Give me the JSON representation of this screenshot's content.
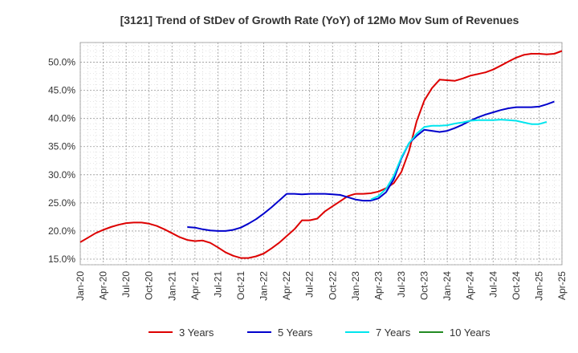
{
  "chart_data": {
    "type": "line",
    "title": "[3121]  Trend of StDev of Growth Rate (YoY) of 12Mo Mov Sum of Revenues",
    "xlabel": "",
    "ylabel": "",
    "ylim": [
      14.0,
      53.5
    ],
    "x_ticks": [
      "Jan-20",
      "Apr-20",
      "Jul-20",
      "Oct-20",
      "Jan-21",
      "Apr-21",
      "Jul-21",
      "Oct-21",
      "Jan-22",
      "Apr-22",
      "Jul-22",
      "Oct-22",
      "Jan-23",
      "Apr-23",
      "Jul-23",
      "Oct-23",
      "Jan-24",
      "Apr-24",
      "Jul-24",
      "Oct-24",
      "Jan-25",
      "Apr-25"
    ],
    "y_ticks": [
      15,
      20,
      25,
      30,
      35,
      40,
      45,
      50
    ],
    "y_tick_labels": [
      "15.0%",
      "20.0%",
      "25.0%",
      "30.0%",
      "35.0%",
      "40.0%",
      "45.0%",
      "50.0%"
    ],
    "grid": true,
    "legend_position": "bottom",
    "series": [
      {
        "name": "3 Years",
        "color": "#dd0000",
        "start_month_index": 0,
        "values": [
          18.0,
          18.8,
          19.6,
          20.2,
          20.7,
          21.1,
          21.4,
          21.5,
          21.5,
          21.3,
          20.9,
          20.3,
          19.6,
          18.9,
          18.4,
          18.2,
          18.3,
          17.9,
          17.1,
          16.2,
          15.6,
          15.2,
          15.2,
          15.5,
          16.0,
          16.9,
          17.9,
          19.1,
          20.3,
          21.9,
          21.9,
          22.2,
          23.5,
          24.4,
          25.3,
          26.2,
          26.6,
          26.6,
          26.7,
          27.0,
          27.6,
          28.5,
          30.5,
          34.2,
          39.5,
          43.2,
          45.4,
          46.9,
          46.8,
          46.7,
          47.1,
          47.6,
          47.9,
          48.2,
          48.7,
          49.4,
          50.1,
          50.8,
          51.3,
          51.5,
          51.5,
          51.4,
          51.5,
          52.0
        ]
      },
      {
        "name": "5 Years",
        "color": "#0000cc",
        "start_month_index": 14,
        "values": [
          20.7,
          20.6,
          20.3,
          20.1,
          20.0,
          20.0,
          20.2,
          20.6,
          21.3,
          22.1,
          23.1,
          24.2,
          25.4,
          26.6,
          26.6,
          26.5,
          26.6,
          26.6,
          26.6,
          26.5,
          26.4,
          26.0,
          25.6,
          25.4,
          25.4,
          25.8,
          26.9,
          29.2,
          32.9,
          35.6,
          36.9,
          38.0,
          37.8,
          37.6,
          37.8,
          38.3,
          38.9,
          39.6,
          40.2,
          40.7,
          41.1,
          41.5,
          41.8,
          42.0,
          42.0,
          42.0,
          42.1,
          42.5,
          43.0
        ]
      },
      {
        "name": "7 Years",
        "color": "#00e5ee",
        "start_month_index": 38,
        "values": [
          25.6,
          26.2,
          27.5,
          29.8,
          33.1,
          35.6,
          37.3,
          38.5,
          38.7,
          38.7,
          38.8,
          39.1,
          39.3,
          39.6,
          39.7,
          39.7,
          39.7,
          39.8,
          39.7,
          39.6,
          39.3,
          39.0,
          39.0,
          39.4
        ]
      },
      {
        "name": "10 Years",
        "color": "#228b22",
        "start_month_index": 0,
        "values": []
      }
    ]
  }
}
